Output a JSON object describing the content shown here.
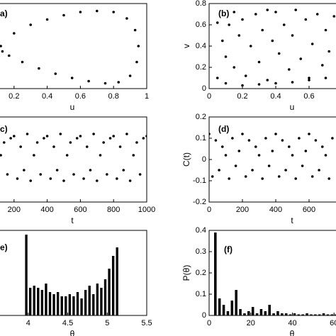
{
  "chart_data": [
    {
      "type": "scatter",
      "label": "a)",
      "xlabel": "u",
      "color": "#000000",
      "xlim": [
        0,
        1
      ],
      "ylim": [
        0,
        0.8
      ],
      "xticks": [
        0.2,
        0.4,
        0.6,
        0.8,
        1
      ],
      "x": [
        0.12,
        0.2,
        0.3,
        0.4,
        0.5,
        0.6,
        0.7,
        0.8,
        0.88,
        0.93,
        0.95,
        0.94,
        0.9,
        0.83,
        0.75,
        0.65,
        0.55,
        0.45,
        0.35,
        0.25,
        0.17,
        0.13
      ],
      "y": [
        0.4,
        0.52,
        0.6,
        0.65,
        0.69,
        0.72,
        0.73,
        0.72,
        0.66,
        0.55,
        0.4,
        0.25,
        0.12,
        0.06,
        0.05,
        0.07,
        0.1,
        0.14,
        0.19,
        0.25,
        0.31,
        0.35
      ]
    },
    {
      "type": "scatter",
      "label": "(b)",
      "xlabel": "u",
      "ylabel": "v",
      "color": "#000000",
      "xlim": [
        0,
        1
      ],
      "ylim": [
        0,
        0.8
      ],
      "xticks": [
        0,
        0.2,
        0.4,
        0.6
      ],
      "yticks": [
        0,
        0.2,
        0.4,
        0.6,
        0.8
      ],
      "x": [
        0.05,
        0.08,
        0.1,
        0.12,
        0.15,
        0.18,
        0.2,
        0.22,
        0.25,
        0.28,
        0.3,
        0.32,
        0.35,
        0.38,
        0.4,
        0.42,
        0.45,
        0.48,
        0.5,
        0.52,
        0.55,
        0.58,
        0.6,
        0.62,
        0.65,
        0.68,
        0.7,
        0.72,
        0.75,
        0.78,
        0.05,
        0.1,
        0.2,
        0.3,
        0.4,
        0.5,
        0.6,
        0.7,
        0.15,
        0.35
      ],
      "y": [
        0.1,
        0.45,
        0.3,
        0.6,
        0.2,
        0.5,
        0.65,
        0.12,
        0.4,
        0.7,
        0.25,
        0.55,
        0.08,
        0.45,
        0.72,
        0.33,
        0.6,
        0.18,
        0.5,
        0.74,
        0.28,
        0.65,
        0.1,
        0.42,
        0.7,
        0.22,
        0.55,
        0.35,
        0.68,
        0.15,
        0.62,
        0.05,
        0.03,
        0.04,
        0.05,
        0.06,
        0.08,
        0.1,
        0.72,
        0.74
      ]
    },
    {
      "type": "scatter",
      "label": "c)",
      "xlabel": "t",
      "color": "#000000",
      "xlim": [
        0,
        1000
      ],
      "ylim": [
        -0.2,
        0.2
      ],
      "xticks": [
        200,
        400,
        600,
        800,
        1000
      ],
      "x": [
        0,
        20,
        40,
        60,
        80,
        100,
        120,
        140,
        160,
        180,
        200,
        220,
        240,
        260,
        280,
        300,
        320,
        340,
        360,
        380,
        400,
        420,
        440,
        460,
        480,
        500,
        520,
        540,
        560,
        580,
        600,
        620,
        640,
        660,
        680,
        700,
        720,
        740,
        760,
        780,
        800,
        820,
        840,
        860,
        880,
        900,
        920,
        940,
        960,
        980,
        1000
      ],
      "y": [
        0.11,
        -0.09,
        0.06,
        -0.05,
        0.12,
        -0.1,
        0.02,
        0.08,
        -0.07,
        0.1,
        0.11,
        -0.09,
        0.06,
        -0.05,
        0.12,
        -0.1,
        0.02,
        0.08,
        -0.07,
        0.1,
        0.11,
        -0.09,
        0.06,
        -0.05,
        0.12,
        -0.1,
        0.02,
        0.08,
        -0.07,
        0.1,
        0.11,
        -0.09,
        0.06,
        -0.05,
        0.12,
        -0.1,
        0.02,
        0.08,
        -0.07,
        0.1,
        0.11,
        -0.09,
        0.06,
        -0.05,
        0.12,
        -0.1,
        0.02,
        0.08,
        -0.07,
        0.1,
        0.11
      ]
    },
    {
      "type": "scatter",
      "label": "(d)",
      "xlabel": "t",
      "ylabel": "C(t)",
      "color": "#000000",
      "xlim": [
        0,
        1000
      ],
      "ylim": [
        -0.2,
        0.2
      ],
      "xticks": [
        0,
        200,
        400,
        600
      ],
      "yticks": [
        -0.2,
        -0.1,
        0,
        0.1,
        0.2
      ],
      "x": [
        0,
        20,
        40,
        60,
        80,
        100,
        120,
        140,
        160,
        180,
        200,
        220,
        240,
        260,
        280,
        300,
        320,
        340,
        360,
        380,
        400,
        420,
        440,
        460,
        480,
        500,
        520,
        540,
        560,
        580,
        600,
        620,
        640,
        660,
        680,
        700,
        720,
        740
      ],
      "y": [
        0.12,
        -0.08,
        0.09,
        -0.05,
        0.06,
        0.02,
        -0.09,
        0.1,
        -0.03,
        0.04,
        0.12,
        -0.08,
        0.09,
        -0.05,
        0.06,
        0.02,
        -0.09,
        0.1,
        -0.03,
        0.04,
        0.12,
        -0.08,
        0.09,
        -0.05,
        0.06,
        0.02,
        -0.09,
        0.1,
        -0.03,
        0.04,
        0.12,
        -0.08,
        0.09,
        -0.05,
        0.06,
        0.02,
        -0.09,
        0.1
      ]
    },
    {
      "type": "histogram",
      "label": "e)",
      "xlabel": "θ",
      "color": "#000000",
      "xlim": [
        3.4,
        5.5
      ],
      "ylim": [
        0,
        0.4
      ],
      "xticks": [
        4,
        4.5,
        5,
        5.5
      ],
      "bins": [
        3.95,
        4.0,
        4.05,
        4.1,
        4.15,
        4.2,
        4.25,
        4.3,
        4.35,
        4.4,
        4.45,
        4.5,
        4.55,
        4.6,
        4.65,
        4.7,
        4.75,
        4.8,
        4.85,
        4.9,
        4.95,
        5.0,
        5.05,
        5.1,
        5.15
      ],
      "values": [
        0.38,
        0.13,
        0.14,
        0.13,
        0.12,
        0.15,
        0.11,
        0.1,
        0.11,
        0.09,
        0.09,
        0.1,
        0.09,
        0.11,
        0.08,
        0.12,
        0.14,
        0.1,
        0.15,
        0.13,
        0.17,
        0.22,
        0.28,
        0.32
      ]
    },
    {
      "type": "histogram",
      "label": "(f)",
      "xlabel": "θ",
      "ylabel": "P(θ)",
      "color": "#000000",
      "xlim": [
        0,
        80
      ],
      "ylim": [
        0,
        0.4
      ],
      "xticks": [
        0,
        20,
        40,
        60
      ],
      "yticks": [
        0,
        0.1,
        0.2,
        0.3,
        0.4
      ],
      "bins": [
        0,
        2,
        4,
        6,
        8,
        10,
        12,
        14,
        16,
        18,
        20,
        22,
        24,
        26,
        28,
        30,
        32,
        34,
        36,
        38,
        40,
        42,
        44,
        46,
        48,
        50,
        52,
        54,
        56,
        58,
        60,
        62,
        64
      ],
      "values": [
        0,
        0.39,
        0.08,
        0.05,
        0.02,
        0.07,
        0.12,
        0.03,
        0.01,
        0.02,
        0.04,
        0.01,
        0.03,
        0.02,
        0.05,
        0.01,
        0.02,
        0.01,
        0.01,
        0.005,
        0.01,
        0.005,
        0.005,
        0.01,
        0.005,
        0.005,
        0.005,
        0.01,
        0.005,
        0.005,
        0.005,
        0.005
      ]
    }
  ]
}
